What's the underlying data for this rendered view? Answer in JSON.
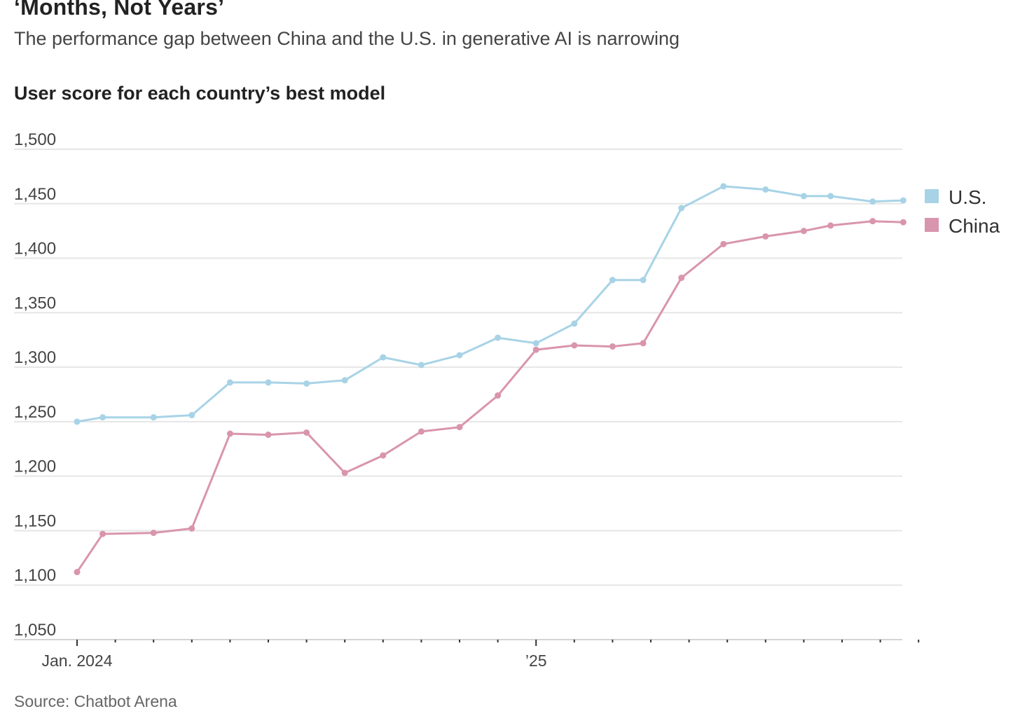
{
  "header": {
    "title": "‘Months, Not Years’",
    "subtitle": "The performance gap between China and the U.S. in generative AI is narrowing"
  },
  "footer": {
    "source": "Source: Chatbot Arena"
  },
  "colors": {
    "us": "#a8d3e6",
    "china": "#d995ad",
    "grid": "#e6e6e6"
  },
  "chart_data": {
    "type": "line",
    "title": "User score for each country’s best model",
    "ylabel": "",
    "xlabel": "",
    "ylim": [
      1050,
      1500
    ],
    "yticks": [
      1050,
      1100,
      1150,
      1200,
      1250,
      1300,
      1350,
      1400,
      1450,
      1500
    ],
    "ytick_labels": [
      "1,050",
      "1,100",
      "1,150",
      "1,200",
      "1,250",
      "1,300",
      "1,350",
      "1,400",
      "1,450",
      "1,500"
    ],
    "x_start": "2024-01",
    "x_months": 22,
    "x_minor_ticks_months": [
      0,
      1,
      2,
      3,
      4,
      5,
      6,
      7,
      8,
      9,
      10,
      11,
      12,
      13,
      14,
      15,
      16,
      17,
      18,
      19,
      20,
      21,
      22
    ],
    "xtick_labels": [
      {
        "label": "Jan. 2024",
        "month": 0
      },
      {
        "label": "’25",
        "month": 12
      }
    ],
    "grid": "horizontal",
    "legend_position": "right",
    "series": [
      {
        "name": "U.S.",
        "color_key": "us",
        "points": [
          [
            0.0,
            1250
          ],
          [
            0.67,
            1254
          ],
          [
            2.0,
            1254
          ],
          [
            3.0,
            1256
          ],
          [
            4.0,
            1286
          ],
          [
            5.0,
            1286
          ],
          [
            6.0,
            1285
          ],
          [
            7.0,
            1288
          ],
          [
            8.0,
            1309
          ],
          [
            9.0,
            1302
          ],
          [
            10.0,
            1311
          ],
          [
            11.0,
            1327
          ],
          [
            12.0,
            1322
          ],
          [
            13.0,
            1340
          ],
          [
            14.0,
            1380
          ],
          [
            14.8,
            1380
          ],
          [
            15.8,
            1446
          ],
          [
            16.9,
            1466
          ],
          [
            18.0,
            1463
          ],
          [
            19.0,
            1457
          ],
          [
            19.7,
            1457
          ],
          [
            20.8,
            1452
          ],
          [
            21.6,
            1453
          ]
        ]
      },
      {
        "name": "China",
        "color_key": "china",
        "points": [
          [
            0.0,
            1112
          ],
          [
            0.67,
            1147
          ],
          [
            2.0,
            1148
          ],
          [
            3.0,
            1152
          ],
          [
            4.0,
            1239
          ],
          [
            5.0,
            1238
          ],
          [
            6.0,
            1240
          ],
          [
            7.0,
            1203
          ],
          [
            8.0,
            1219
          ],
          [
            9.0,
            1241
          ],
          [
            10.0,
            1245
          ],
          [
            11.0,
            1274
          ],
          [
            12.0,
            1316
          ],
          [
            13.0,
            1320
          ],
          [
            14.0,
            1319
          ],
          [
            14.8,
            1322
          ],
          [
            15.8,
            1382
          ],
          [
            16.9,
            1413
          ],
          [
            18.0,
            1420
          ],
          [
            19.0,
            1425
          ],
          [
            19.7,
            1430
          ],
          [
            20.8,
            1434
          ],
          [
            21.6,
            1433
          ]
        ]
      }
    ]
  }
}
